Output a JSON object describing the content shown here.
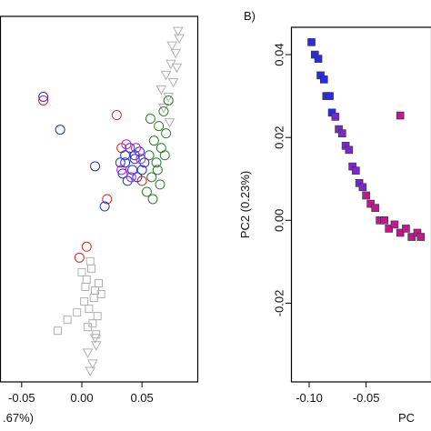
{
  "chart_data": [
    {
      "type": "scatter",
      "xlabel": ".67%)",
      "xlim": [
        -0.068,
        0.096
      ],
      "ylim": [
        0,
        1
      ],
      "xticks": [
        {
          "value": -0.05,
          "label": "-0.05"
        },
        {
          "value": 0,
          "label": "0.00"
        },
        {
          "value": 0.05,
          "label": "0.05"
        }
      ],
      "series": [
        {
          "color": "#b0b0b0",
          "marker": "square",
          "x": [
            0.0,
            0.004,
            0.008,
            0.011,
            0.014,
            0.002,
            0.006,
            0.01,
            0.013,
            0.005,
            0.009,
            0.012,
            -0.004,
            -0.012,
            -0.02,
            0.016,
            0.003,
            0.007
          ],
          "values": [
            0.3,
            0.28,
            0.31,
            0.25,
            0.27,
            0.22,
            0.2,
            0.23,
            0.18,
            0.15,
            0.16,
            0.13,
            0.19,
            0.17,
            0.14,
            0.24,
            0.26,
            0.33
          ]
        },
        {
          "color": "#b0b0b0",
          "marker": "triangle",
          "x": [
            0.066,
            0.07,
            0.074,
            0.078,
            0.081,
            0.072,
            0.076,
            0.08,
            0.068,
            0.075,
            0.079,
            0.073,
            0.005,
            0.009,
            0.012,
            0.007,
            0.011
          ],
          "values": [
            0.8,
            0.84,
            0.87,
            0.9,
            0.94,
            0.78,
            0.82,
            0.96,
            0.75,
            0.92,
            0.86,
            0.71,
            0.08,
            0.05,
            0.1,
            0.03,
            0.12
          ]
        },
        {
          "color": "#2e7d2e",
          "marker": "circle",
          "x": [
            0.054,
            0.058,
            0.062,
            0.066,
            0.07,
            0.056,
            0.06,
            0.064,
            0.068,
            0.072,
            0.057,
            0.063,
            0.069,
            0.059,
            0.065
          ],
          "values": [
            0.52,
            0.56,
            0.6,
            0.64,
            0.68,
            0.62,
            0.66,
            0.7,
            0.74,
            0.77,
            0.72,
            0.58,
            0.62,
            0.5,
            0.54
          ]
        },
        {
          "color": "#cc2a2a",
          "marker": "circle",
          "x": [
            -0.032,
            0.029,
            0.004,
            -0.002,
            0.021,
            0.033,
            0.05
          ],
          "values": [
            0.77,
            0.73,
            0.37,
            0.34,
            0.5,
            0.64,
            0.55
          ]
        },
        {
          "color": "#2233cc",
          "marker": "circle",
          "x": [
            -0.032,
            -0.018,
            0.011,
            0.019,
            0.032,
            0.036,
            0.04,
            0.044,
            0.048,
            0.052,
            0.034,
            0.038,
            0.042,
            0.046,
            0.05,
            0.036,
            0.044
          ],
          "values": [
            0.78,
            0.69,
            0.59,
            0.48,
            0.6,
            0.62,
            0.64,
            0.61,
            0.63,
            0.6,
            0.57,
            0.55,
            0.58,
            0.56,
            0.58,
            0.6,
            0.62
          ]
        },
        {
          "color": "#c020c0",
          "marker": "circle",
          "x": [
            0.033,
            0.037,
            0.041,
            0.045,
            0.049
          ],
          "values": [
            0.58,
            0.65,
            0.56,
            0.64,
            0.61
          ]
        }
      ]
    },
    {
      "type": "scatter",
      "title": "B)",
      "xlabel": "PC",
      "ylabel": "PC2 (0.23%)",
      "xlim": [
        -0.116,
        0.007
      ],
      "ylim": [
        -0.039,
        0.0466
      ],
      "xticks": [
        {
          "value": -0.1,
          "label": "-0.10"
        },
        {
          "value": -0.05,
          "label": "-0.05"
        }
      ],
      "yticks": [
        {
          "value": 0.04,
          "label": "0.04"
        },
        {
          "value": 0.02,
          "label": "0.02"
        },
        {
          "value": 0,
          "label": "0.00"
        },
        {
          "value": -0.02,
          "label": "-0.02"
        }
      ],
      "series": [
        {
          "color": "#2a2aee",
          "marker": "square",
          "x": [
            -0.098,
            -0.095,
            -0.092,
            -0.09,
            -0.087,
            -0.085,
            -0.082,
            -0.08
          ],
          "values": [
            0.043,
            0.04,
            0.039,
            0.035,
            0.034,
            0.03,
            0.03,
            0.026
          ]
        },
        {
          "color": "#7a28c8",
          "marker": "square",
          "x": [
            -0.077,
            -0.074,
            -0.071,
            -0.068,
            -0.065,
            -0.062,
            -0.059,
            -0.056,
            -0.053
          ],
          "values": [
            0.025,
            0.022,
            0.021,
            0.018,
            0.017,
            0.013,
            0.012,
            0.009,
            0.008
          ]
        },
        {
          "color": "#c01890",
          "marker": "square",
          "x": [
            -0.05,
            -0.046,
            -0.042,
            -0.038,
            -0.034,
            -0.03,
            -0.025,
            -0.02,
            -0.015,
            -0.01,
            -0.005,
            -0.002,
            -0.02
          ],
          "values": [
            0.006,
            0.004,
            0.003,
            0.0,
            0.0,
            -0.002,
            -0.001,
            -0.003,
            -0.002,
            -0.004,
            -0.003,
            -0.004,
            0.0253
          ]
        }
      ]
    }
  ]
}
